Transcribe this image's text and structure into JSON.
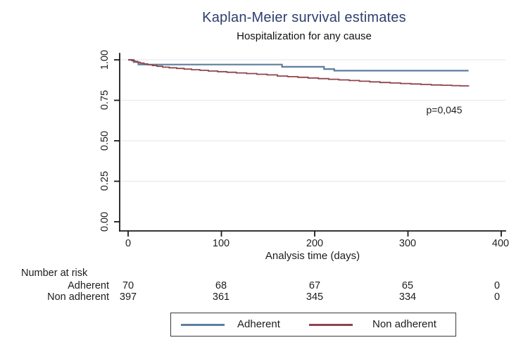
{
  "title": "Kaplan-Meier survival estimates",
  "subtitle": "Hospitalization for any cause",
  "colors": {
    "title_text": "#2e3f6e",
    "adherent_line": "#5d7e9f",
    "non_adherent_line": "#8f434c",
    "grid": "#ebebeb",
    "axis": "#1a1a1a"
  },
  "chart_data": {
    "type": "line",
    "subtype": "kaplan-meier-step",
    "title": "Kaplan-Meier survival estimates",
    "subtitle": "Hospitalization for any cause",
    "xlabel": "Analysis time (days)",
    "ylabel": "",
    "xlim": [
      0,
      400
    ],
    "ylim": [
      0.0,
      1.0
    ],
    "x_tick_labels": [
      "0",
      "100",
      "200",
      "300",
      "400"
    ],
    "y_tick_labels": [
      "0.00",
      "0.25",
      "0.50",
      "0.75",
      "1.00"
    ],
    "grid": "horizontal-light",
    "legend_position": "bottom-center",
    "annotations": [
      {
        "text": "p=0,045",
        "x_day": 338,
        "y_survival": 0.69
      }
    ],
    "series": [
      {
        "name": "Adherent",
        "color": "#5d7e9f",
        "stroke_width": 2.2,
        "points": [
          [
            0,
            1.0
          ],
          [
            6,
            0.986
          ],
          [
            11,
            0.971
          ],
          [
            165,
            0.957
          ],
          [
            210,
            0.943
          ],
          [
            221,
            0.933
          ],
          [
            365,
            0.933
          ]
        ]
      },
      {
        "name": "Non adherent",
        "color": "#8f434c",
        "stroke_width": 1.8,
        "points": [
          [
            0,
            1.0
          ],
          [
            4,
            0.995
          ],
          [
            7,
            0.99
          ],
          [
            10,
            0.985
          ],
          [
            13,
            0.98
          ],
          [
            17,
            0.975
          ],
          [
            21,
            0.97
          ],
          [
            26,
            0.965
          ],
          [
            31,
            0.96
          ],
          [
            37,
            0.955
          ],
          [
            44,
            0.951
          ],
          [
            52,
            0.947
          ],
          [
            60,
            0.943
          ],
          [
            68,
            0.939
          ],
          [
            77,
            0.935
          ],
          [
            86,
            0.931
          ],
          [
            96,
            0.927
          ],
          [
            106,
            0.923
          ],
          [
            116,
            0.919
          ],
          [
            127,
            0.915
          ],
          [
            138,
            0.911
          ],
          [
            149,
            0.907
          ],
          [
            160,
            0.9
          ],
          [
            171,
            0.896
          ],
          [
            182,
            0.892
          ],
          [
            193,
            0.888
          ],
          [
            204,
            0.884
          ],
          [
            215,
            0.88
          ],
          [
            226,
            0.876
          ],
          [
            237,
            0.872
          ],
          [
            248,
            0.868
          ],
          [
            259,
            0.864
          ],
          [
            270,
            0.86
          ],
          [
            281,
            0.857
          ],
          [
            292,
            0.854
          ],
          [
            303,
            0.851
          ],
          [
            314,
            0.848
          ],
          [
            325,
            0.845
          ],
          [
            336,
            0.843
          ],
          [
            347,
            0.841
          ],
          [
            356,
            0.839
          ],
          [
            365,
            0.837
          ]
        ]
      }
    ]
  },
  "risk_table": {
    "header": "Number at risk",
    "time_points": [
      "0",
      "100",
      "200",
      "300",
      "400"
    ],
    "rows": [
      {
        "label": "Adherent",
        "counts": [
          "70",
          "68",
          "67",
          "65",
          "0"
        ]
      },
      {
        "label": "Non adherent",
        "counts": [
          "397",
          "361",
          "345",
          "334",
          "0"
        ]
      }
    ]
  },
  "legend": {
    "items": [
      {
        "label": "Adherent"
      },
      {
        "label": "Non adherent"
      }
    ]
  }
}
